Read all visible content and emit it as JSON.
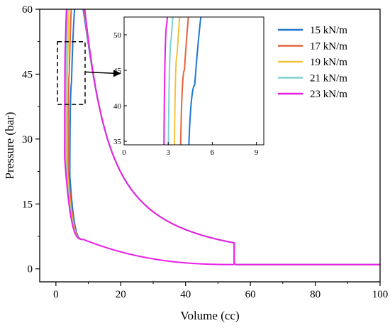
{
  "chart_data": {
    "type": "line",
    "xlabel": "Volume (cc)",
    "ylabel": "Pressure (bar)",
    "xlim": [
      -5,
      100
    ],
    "ylim": [
      -3,
      60
    ],
    "xticks": [
      0,
      20,
      40,
      60,
      80,
      100
    ],
    "yticks": [
      0,
      15,
      30,
      45,
      60
    ],
    "grid": false,
    "legend_position": "top-right",
    "series": [
      {
        "name": "15 kN/m",
        "color": "#1f77d4",
        "peak": [
          4.8,
          42.9
        ],
        "close_x": 4.3
      },
      {
        "name": "17 kN/m",
        "color": "#e8633c",
        "peak": [
          4.1,
          45.0
        ],
        "close_x": 3.8
      },
      {
        "name": "19 kN/m",
        "color": "#f4c33a",
        "peak": [
          3.6,
          47.2
        ],
        "close_x": 3.4
      },
      {
        "name": "21 kN/m",
        "color": "#7ed0d0",
        "peak": [
          3.2,
          49.3
        ],
        "close_x": 3.0
      },
      {
        "name": "23 kN/m",
        "color": "#e81fe8",
        "peak": [
          2.9,
          51.4
        ],
        "close_x": 2.7
      }
    ],
    "cycle": {
      "expansion_end": [
        55,
        6.0
      ],
      "exhaust_level": 1.0,
      "compression_knee": [
        8.5,
        6.8
      ]
    },
    "inset": {
      "xlim": [
        0,
        9.5
      ],
      "ylim": [
        34.5,
        52.5
      ],
      "xticks": [
        0,
        3,
        6,
        9
      ],
      "yticks": [
        35,
        40,
        45,
        50
      ],
      "zoom_region": {
        "x": [
          0.5,
          9
        ],
        "y": [
          38,
          52.5
        ]
      }
    }
  }
}
